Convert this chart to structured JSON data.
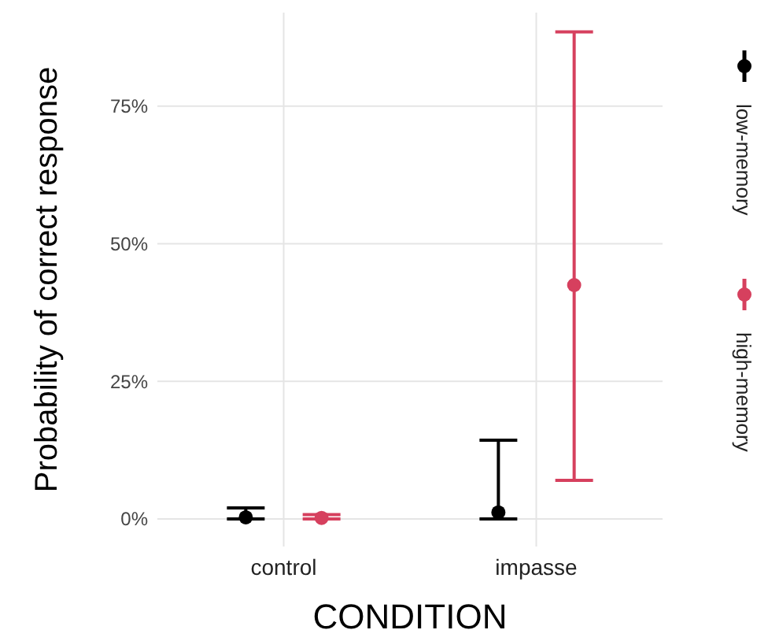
{
  "chart_data": {
    "type": "scatter",
    "xlabel": "CONDITION",
    "ylabel": "Probability of correct response",
    "categories": [
      "control",
      "impasse"
    ],
    "series": [
      {
        "name": "low-memory",
        "color": "#000000",
        "values": [
          0.3,
          1.2
        ],
        "errors": [
          [
            0,
            2
          ],
          [
            0,
            14.3
          ]
        ]
      },
      {
        "name": "high-memory",
        "color": "#d6405e",
        "values": [
          0.2,
          42.5
        ],
        "errors": [
          [
            0,
            0.8
          ],
          [
            7,
            88.5
          ]
        ]
      }
    ],
    "ylim": [
      -5,
      92
    ],
    "yticks": [
      {
        "value": 0,
        "label": "0%"
      },
      {
        "value": 25,
        "label": "25%"
      },
      {
        "value": 50,
        "label": "50%"
      },
      {
        "value": 75,
        "label": "75%"
      }
    ],
    "grid": true,
    "legend": "right",
    "marker": "circle"
  }
}
